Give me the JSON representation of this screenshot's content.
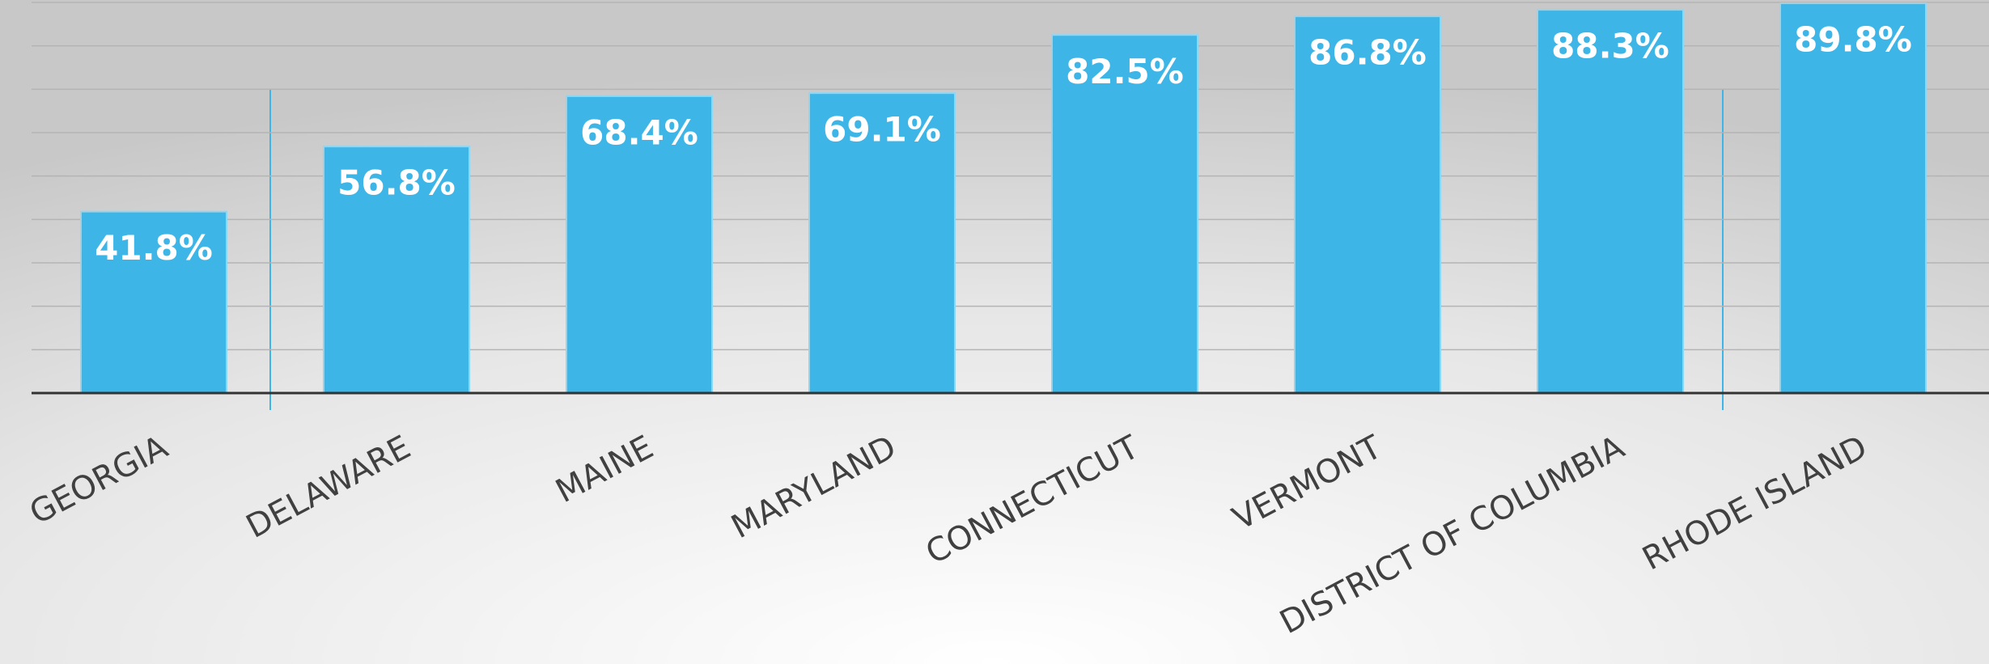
{
  "chart_data": {
    "type": "bar",
    "categories": [
      "GEORGIA",
      "DELAWARE",
      "MAINE",
      "MARYLAND",
      "CONNECTICUT",
      "VERMONT",
      "DISTRICT OF COLUMBIA",
      "RHODE ISLAND"
    ],
    "values": [
      41.8,
      56.8,
      68.4,
      69.1,
      82.5,
      86.8,
      88.3,
      89.8
    ],
    "value_labels": [
      "41.8%",
      "56.8%",
      "68.4%",
      "69.1%",
      "82.5%",
      "86.8%",
      "88.3%",
      "89.8%"
    ],
    "color": "#3db5e6",
    "ylim": [
      0,
      90
    ],
    "yticks": [
      0,
      10,
      20,
      30,
      40,
      50,
      60,
      70,
      80,
      90
    ],
    "grid": true
  }
}
